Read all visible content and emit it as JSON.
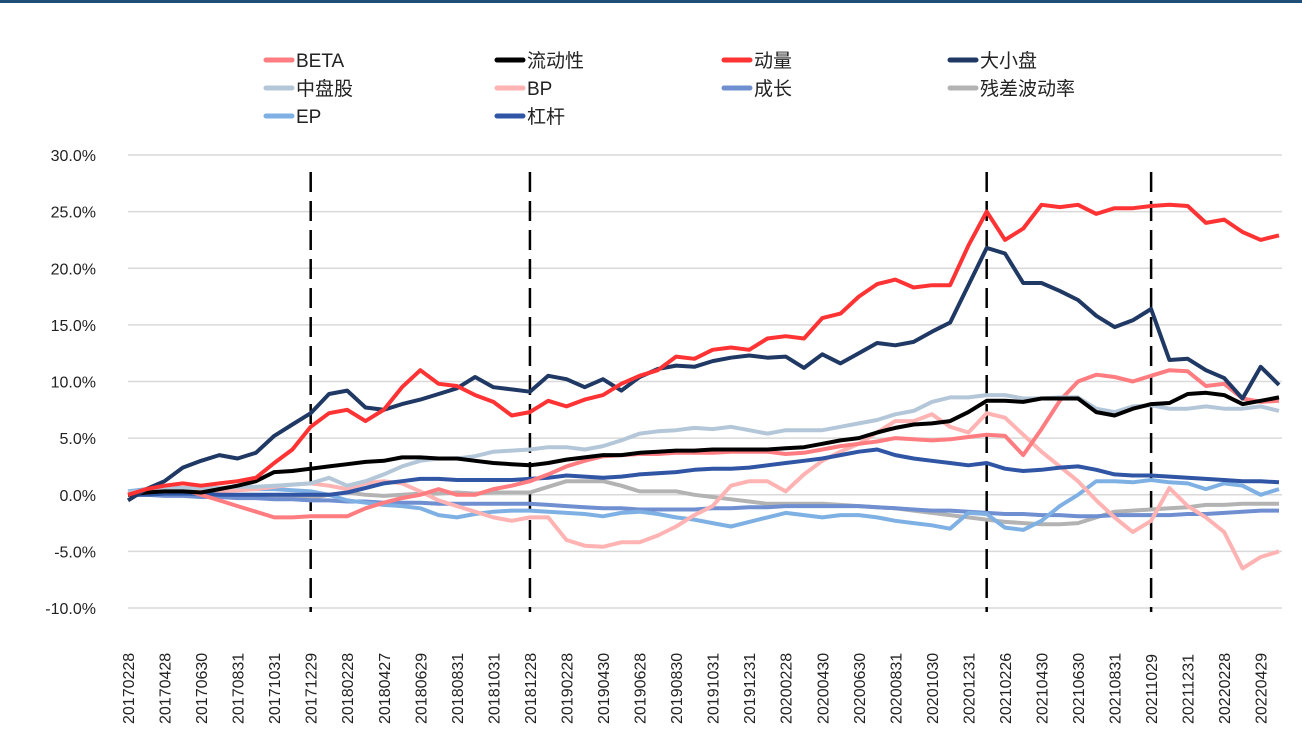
{
  "chart_data": {
    "type": "line",
    "title": "",
    "xlabel": "",
    "ylabel": "",
    "ylim": [
      -10,
      30
    ],
    "y_unit": "%",
    "yticks": [
      "30.0%",
      "25.0%",
      "20.0%",
      "15.0%",
      "10.0%",
      "5.0%",
      "0.0%",
      "-5.0%",
      "-10.0%"
    ],
    "ytick_values": [
      30,
      25,
      20,
      15,
      10,
      5,
      0,
      -5,
      -10
    ],
    "grid": true,
    "legend_position": "top",
    "x_labels": [
      "20170228",
      "20170428",
      "20170630",
      "20170831",
      "20171031",
      "20171229",
      "20180228",
      "20180427",
      "20180629",
      "20180831",
      "20181031",
      "20181228",
      "20190228",
      "20190430",
      "20190628",
      "20190830",
      "20191031",
      "20191231",
      "20200228",
      "20200430",
      "20200630",
      "20200831",
      "20201030",
      "20201231",
      "20210226",
      "20210430",
      "20210630",
      "20210831",
      "20211029",
      "20211231",
      "20220228",
      "20220429"
    ],
    "x_label_step_months": 2,
    "n_points": 64,
    "vertical_markers": [
      10,
      22,
      47,
      56
    ],
    "series": [
      {
        "name": "BETA",
        "color": "#ff7c80",
        "values": [
          0,
          0.3,
          0.3,
          0.5,
          0,
          -0.5,
          -1,
          -1.5,
          -2,
          -2,
          -1.9,
          -1.9,
          -1.9,
          -1.2,
          -0.7,
          -0.3,
          0,
          0.5,
          0,
          0,
          0.5,
          0.8,
          1.2,
          1.8,
          2.5,
          3,
          3.4,
          3.5,
          3.6,
          3.6,
          3.7,
          3.7,
          3.7,
          3.8,
          3.8,
          3.8,
          3.6,
          3.7,
          4,
          4.3,
          4.5,
          4.7,
          5,
          4.9,
          4.8,
          4.9,
          5.1,
          5.3,
          5.2,
          3.5,
          5.8,
          8.3,
          10,
          10.6,
          10.4,
          10,
          10.5,
          11,
          10.9,
          9.6,
          9.8,
          8.5,
          8.2,
          8.3
        ]
      },
      {
        "name": "流动性",
        "color": "#000000",
        "values": [
          0,
          0.2,
          0.3,
          0.3,
          0.2,
          0.5,
          0.8,
          1.2,
          2,
          2.1,
          2.3,
          2.5,
          2.7,
          2.9,
          3,
          3.3,
          3.3,
          3.2,
          3.2,
          3,
          2.8,
          2.7,
          2.6,
          2.8,
          3.1,
          3.3,
          3.5,
          3.5,
          3.7,
          3.8,
          3.9,
          3.9,
          4,
          4,
          4,
          4,
          4.1,
          4.2,
          4.5,
          4.8,
          5,
          5.5,
          5.9,
          6.2,
          6.3,
          6.5,
          7.3,
          8.3,
          8.3,
          8.2,
          8.5,
          8.5,
          8.5,
          7.3,
          7,
          7.6,
          8,
          8.1,
          8.9,
          9,
          8.8,
          8,
          8.3,
          8.6
        ]
      },
      {
        "name": "动量",
        "color": "#ff3333",
        "values": [
          0,
          0.5,
          0.8,
          1,
          0.8,
          1,
          1.2,
          1.5,
          2.8,
          4,
          6,
          7.2,
          7.5,
          6.5,
          7.5,
          9.5,
          11,
          9.8,
          9.6,
          8.8,
          8.2,
          7,
          7.3,
          8.3,
          7.8,
          8.4,
          8.8,
          9.8,
          10.5,
          11,
          12.2,
          12,
          12.8,
          13,
          12.8,
          13.8,
          14,
          13.8,
          15.6,
          16,
          17.5,
          18.6,
          19,
          18.3,
          18.5,
          18.5,
          22,
          25,
          22.5,
          23.5,
          25.6,
          25.4,
          25.6,
          24.8,
          25.3,
          25.3,
          25.5,
          25.6,
          25.5,
          24,
          24.3,
          23.2,
          22.5,
          22.9
        ]
      },
      {
        "name": "大小盘",
        "color": "#1f3864",
        "values": [
          -0.5,
          0.5,
          1.2,
          2.4,
          3,
          3.5,
          3.2,
          3.7,
          5.2,
          6.2,
          7.2,
          8.9,
          9.2,
          7.7,
          7.5,
          8,
          8.4,
          8.9,
          9.4,
          10.4,
          9.5,
          9.3,
          9.1,
          10.5,
          10.2,
          9.5,
          10.2,
          9.2,
          10.4,
          11.1,
          11.4,
          11.3,
          11.8,
          12.1,
          12.3,
          12.1,
          12.2,
          11.2,
          12.4,
          11.6,
          12.5,
          13.4,
          13.2,
          13.5,
          14.4,
          15.2,
          18.5,
          21.8,
          21.3,
          18.7,
          18.7,
          18,
          17.2,
          15.8,
          14.8,
          15.4,
          16.4,
          11.9,
          12,
          11,
          10.3,
          8.5,
          11.3,
          9.7
        ]
      },
      {
        "name": "中盘股",
        "color": "#b4c7d9",
        "values": [
          0.2,
          0.4,
          0.5,
          0.6,
          0.6,
          0.6,
          0.7,
          0.7,
          0.8,
          0.9,
          1,
          1.5,
          0.8,
          1.2,
          1.8,
          2.5,
          3,
          3.2,
          3.2,
          3.4,
          3.8,
          3.9,
          4,
          4.2,
          4.2,
          4,
          4.3,
          4.8,
          5.4,
          5.6,
          5.7,
          5.9,
          5.8,
          6,
          5.7,
          5.4,
          5.7,
          5.7,
          5.7,
          6,
          6.3,
          6.6,
          7.1,
          7.4,
          8.2,
          8.6,
          8.6,
          8.8,
          8.8,
          8.5,
          8.5,
          8.6,
          8.6,
          7.6,
          7.3,
          7.8,
          7.9,
          7.6,
          7.6,
          7.8,
          7.6,
          7.6,
          7.8,
          7.4
        ]
      },
      {
        "name": "BP",
        "color": "#ffb3b3",
        "values": [
          0,
          0.2,
          0.3,
          0.4,
          0.4,
          0.3,
          0.4,
          0.5,
          0.7,
          0.9,
          1,
          0.8,
          0.5,
          1,
          1.2,
          1,
          0.3,
          -0.5,
          -1,
          -1.5,
          -2,
          -2.3,
          -2,
          -2,
          -4,
          -4.5,
          -4.6,
          -4.2,
          -4.2,
          -3.6,
          -2.8,
          -1.8,
          -1,
          0.8,
          1.2,
          1.2,
          0.3,
          1.8,
          3,
          3.8,
          4.5,
          5.5,
          6.5,
          6.5,
          7.1,
          6,
          5.5,
          7.2,
          6.8,
          5.3,
          3.8,
          2.5,
          1.2,
          -0.5,
          -2,
          -3.3,
          -2.3,
          0.6,
          -1,
          -2,
          -3.3,
          -6.5,
          -5.5,
          -5
        ]
      },
      {
        "name": "成长",
        "color": "#6f8fd1",
        "values": [
          0,
          0,
          -0.1,
          -0.1,
          -0.2,
          -0.2,
          -0.3,
          -0.3,
          -0.4,
          -0.4,
          -0.5,
          -0.5,
          -0.6,
          -0.6,
          -0.7,
          -0.7,
          -0.7,
          -0.8,
          -0.8,
          -0.8,
          -0.8,
          -0.8,
          -0.8,
          -0.9,
          -1,
          -1.1,
          -1.2,
          -1.2,
          -1.3,
          -1.3,
          -1.3,
          -1.3,
          -1.2,
          -1.2,
          -1.1,
          -1.1,
          -1,
          -1,
          -1,
          -1,
          -1,
          -1.1,
          -1.2,
          -1.3,
          -1.4,
          -1.4,
          -1.5,
          -1.6,
          -1.7,
          -1.7,
          -1.8,
          -1.8,
          -1.9,
          -1.9,
          -1.8,
          -1.8,
          -1.8,
          -1.8,
          -1.7,
          -1.7,
          -1.6,
          -1.5,
          -1.4,
          -1.4
        ]
      },
      {
        "name": "残差波动率",
        "color": "#b3b3b3",
        "values": [
          0,
          0.1,
          0.1,
          0,
          -0.1,
          -0.2,
          -0.2,
          -0.2,
          -0.3,
          -0.3,
          -0.3,
          0,
          0.2,
          0,
          -0.1,
          0,
          0.1,
          0.1,
          0.2,
          0.1,
          0.2,
          0.2,
          0.2,
          0.7,
          1.2,
          1.2,
          1.2,
          0.8,
          0.3,
          0.3,
          0.3,
          0,
          -0.2,
          -0.4,
          -0.6,
          -0.8,
          -0.8,
          -0.8,
          -0.8,
          -0.9,
          -1,
          -1.1,
          -1.2,
          -1.4,
          -1.6,
          -1.8,
          -2,
          -2.2,
          -2.4,
          -2.5,
          -2.6,
          -2.6,
          -2.5,
          -2,
          -1.5,
          -1.4,
          -1.3,
          -1.2,
          -1.1,
          -0.9,
          -0.9,
          -0.8,
          -0.8,
          -0.8
        ]
      },
      {
        "name": "EP",
        "color": "#7eb0e3",
        "values": [
          0.3,
          0.5,
          0.6,
          0.6,
          0.6,
          0.5,
          0.5,
          0.5,
          0.5,
          0.4,
          0.3,
          0,
          -0.5,
          -0.7,
          -0.9,
          -1,
          -1.2,
          -1.8,
          -2,
          -1.7,
          -1.5,
          -1.4,
          -1.4,
          -1.5,
          -1.6,
          -1.7,
          -1.9,
          -1.6,
          -1.5,
          -1.7,
          -2,
          -2.2,
          -2.5,
          -2.8,
          -2.4,
          -2,
          -1.6,
          -1.8,
          -2,
          -1.8,
          -1.8,
          -2,
          -2.3,
          -2.5,
          -2.7,
          -3,
          -1.6,
          -1.7,
          -2.9,
          -3.1,
          -2.3,
          -1,
          0,
          1.2,
          1.2,
          1.1,
          1.3,
          1.1,
          1,
          0.5,
          1,
          0.8,
          0,
          0.5
        ]
      },
      {
        "name": "杠杆",
        "color": "#2f55a4",
        "values": [
          0,
          0,
          0.1,
          0.1,
          0.1,
          0,
          0,
          0,
          0,
          0,
          0,
          0,
          0.2,
          0.6,
          1,
          1.2,
          1.4,
          1.4,
          1.3,
          1.3,
          1.3,
          1.3,
          1.4,
          1.5,
          1.7,
          1.6,
          1.5,
          1.6,
          1.8,
          1.9,
          2,
          2.2,
          2.3,
          2.3,
          2.4,
          2.6,
          2.8,
          3,
          3.2,
          3.5,
          3.8,
          4,
          3.5,
          3.2,
          3,
          2.8,
          2.6,
          2.8,
          2.3,
          2.1,
          2.2,
          2.4,
          2.5,
          2.2,
          1.8,
          1.7,
          1.7,
          1.6,
          1.5,
          1.4,
          1.3,
          1.2,
          1.2,
          1.1
        ]
      }
    ]
  }
}
